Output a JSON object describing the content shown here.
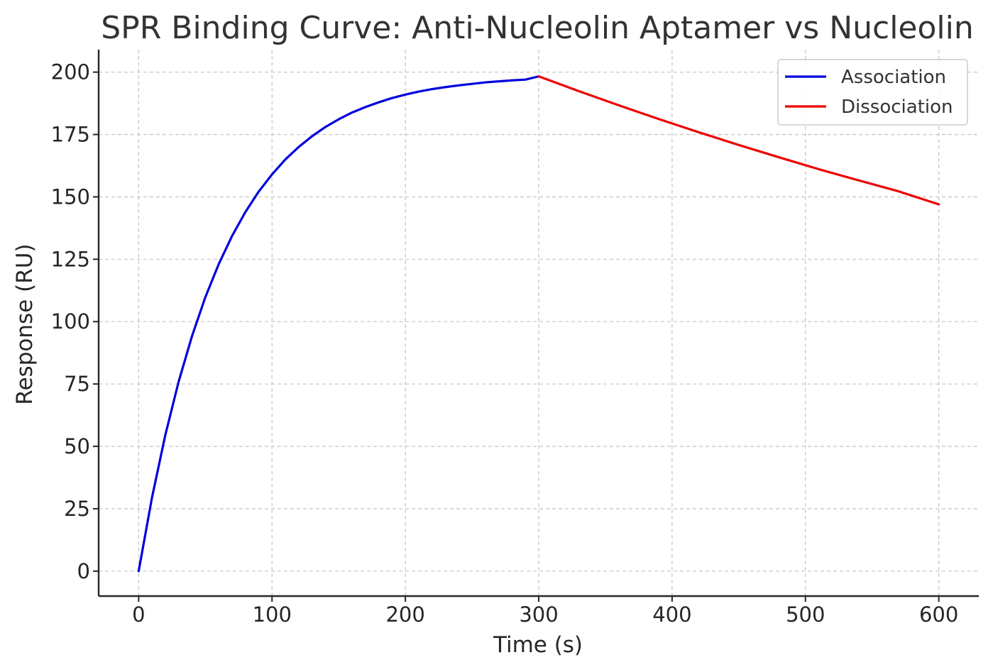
{
  "chart_data": {
    "type": "line",
    "title": "SPR Binding Curve: Anti-Nucleolin Aptamer vs Nucleolin",
    "xlabel": "Time (s)",
    "ylabel": "Response (RU)",
    "xlim": [
      -30,
      630
    ],
    "ylim": [
      -10,
      209
    ],
    "x_ticks": [
      0,
      100,
      200,
      300,
      400,
      500,
      600
    ],
    "y_ticks": [
      0,
      25,
      50,
      75,
      100,
      125,
      150,
      175,
      200
    ],
    "grid": true,
    "legend_position": "top-right",
    "series": [
      {
        "name": "Association",
        "color": "#0000dd",
        "x": [
          0,
          10,
          20,
          30,
          40,
          50,
          60,
          70,
          80,
          90,
          100,
          110,
          120,
          130,
          140,
          150,
          160,
          170,
          180,
          190,
          200,
          210,
          220,
          230,
          240,
          250,
          260,
          270,
          280,
          290,
          300
        ],
        "y": [
          0,
          29.5,
          54.6,
          76.0,
          94.2,
          109.8,
          123.0,
          134.3,
          143.9,
          152.1,
          159.0,
          165.0,
          170.0,
          174.3,
          178.0,
          181.1,
          183.8,
          186.0,
          187.9,
          189.6,
          191.0,
          192.2,
          193.2,
          194.0,
          194.7,
          195.3,
          195.9,
          196.3,
          196.7,
          197.0,
          198.3
        ]
      },
      {
        "name": "Dissociation",
        "color": "#ee0000",
        "x": [
          300,
          330,
          360,
          390,
          420,
          450,
          480,
          510,
          540,
          570,
          600
        ],
        "y": [
          198.3,
          192.4,
          186.7,
          181.2,
          175.9,
          170.8,
          165.9,
          161.1,
          156.6,
          152.2,
          147.0
        ]
      }
    ]
  }
}
